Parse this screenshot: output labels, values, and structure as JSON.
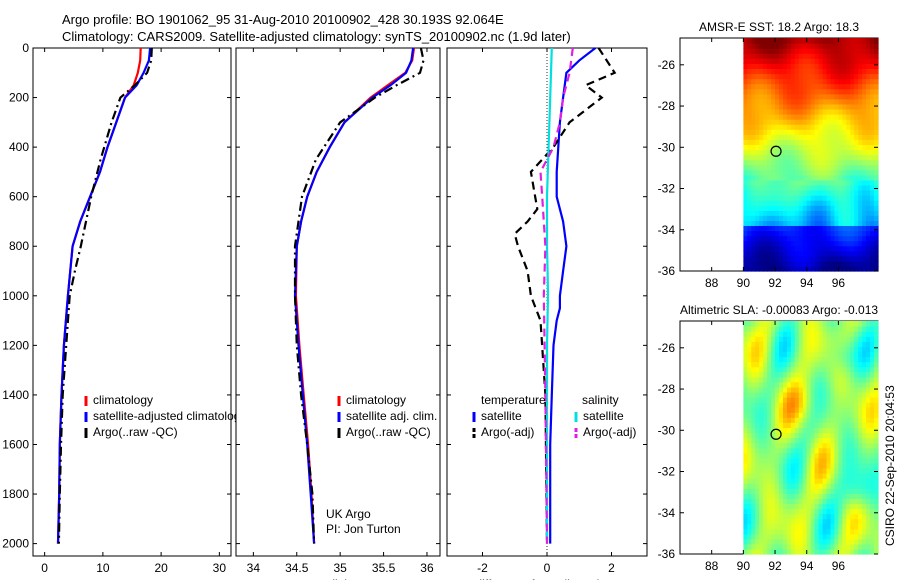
{
  "header": {
    "line1": "Argo profile: BO 1901062_95 31-Aug-2010 20100902_428 30.193S 92.064E",
    "line2": "Climatology: CARS2009. Satellite-adjusted climatology: synTS_20100902.nc (1.9d later)"
  },
  "credit": "CSIRO 22-Sep-2010 20:04:53",
  "colors": {
    "red": "#ff0000",
    "blue": "#0000ff",
    "black": "#000000",
    "cyan": "#00e0e0",
    "magenta": "#e020e0"
  },
  "chart_data": [
    {
      "type": "line",
      "name": "temperature",
      "xlabel": "temperature",
      "xlim": [
        -2,
        32
      ],
      "ylim": [
        2050,
        0
      ],
      "xticks": [
        0,
        10,
        20,
        30
      ],
      "yticks": [
        0,
        200,
        400,
        600,
        800,
        1000,
        1200,
        1400,
        1600,
        1800,
        2000
      ],
      "legend": [
        "climatology",
        "satellite-adjusted climatology",
        "Argo(..raw -QC)"
      ],
      "series": [
        {
          "name": "climatology",
          "color": "red",
          "dash": "solid",
          "x": [
            16.5,
            16.4,
            16.0,
            15.3,
            13.8,
            12.3,
            10.8,
            9.5,
            7.8,
            6.1,
            4.8,
            4.0,
            3.3,
            2.9,
            2.6,
            2.5,
            2.3
          ],
          "y": [
            0,
            50,
            100,
            150,
            200,
            300,
            400,
            500,
            600,
            700,
            800,
            1000,
            1200,
            1400,
            1600,
            1800,
            2000
          ]
        },
        {
          "name": "satellite-adjusted climatology",
          "color": "blue",
          "dash": "solid",
          "x": [
            18.1,
            17.9,
            17.0,
            15.8,
            13.8,
            12.3,
            10.8,
            9.5,
            7.8,
            6.1,
            4.8,
            4.0,
            3.3,
            2.9,
            2.6,
            2.5,
            2.3
          ],
          "y": [
            0,
            50,
            100,
            150,
            200,
            300,
            400,
            500,
            600,
            700,
            800,
            1000,
            1200,
            1400,
            1600,
            1800,
            2000
          ]
        },
        {
          "name": "Argo(..raw -QC)",
          "color": "black",
          "dash": "dashdot",
          "x": [
            18.4,
            18.3,
            17.6,
            15.5,
            13.0,
            11.5,
            9.6,
            8.0,
            6.2,
            5.2,
            4.3,
            3.7,
            3.1,
            2.8,
            2.6,
            2.45
          ],
          "y": [
            0,
            50,
            100,
            150,
            200,
            300,
            450,
            600,
            800,
            900,
            1000,
            1200,
            1400,
            1600,
            1800,
            2000
          ]
        }
      ]
    },
    {
      "type": "line",
      "name": "salinity",
      "xlabel": "salinity",
      "xlim": [
        33.8,
        36.15
      ],
      "ylim": [
        2050,
        0
      ],
      "xticks": [
        34,
        34.5,
        35,
        35.5,
        36
      ],
      "legend": [
        "climatology",
        "satellite adj. clim.",
        "Argo(..raw -QC)"
      ],
      "annotations": [
        "UK Argo",
        "PI: Jon Turton"
      ],
      "series": [
        {
          "name": "climatology",
          "color": "red",
          "dash": "solid",
          "x": [
            35.85,
            35.83,
            35.75,
            35.55,
            35.35,
            35.05,
            34.88,
            34.73,
            34.62,
            34.55,
            34.5,
            34.49,
            34.53,
            34.58,
            34.63,
            34.67,
            34.7
          ],
          "y": [
            0,
            50,
            100,
            150,
            200,
            300,
            400,
            500,
            600,
            700,
            800,
            1000,
            1200,
            1400,
            1600,
            1800,
            2000
          ]
        },
        {
          "name": "satellite adj. clim.",
          "color": "blue",
          "dash": "solid",
          "x": [
            35.84,
            35.82,
            35.76,
            35.58,
            35.37,
            35.05,
            34.88,
            34.73,
            34.62,
            34.55,
            34.5,
            34.48,
            34.52,
            34.57,
            34.62,
            34.66,
            34.7
          ],
          "y": [
            0,
            50,
            100,
            150,
            200,
            300,
            400,
            500,
            600,
            700,
            800,
            1000,
            1200,
            1400,
            1600,
            1800,
            2000
          ]
        },
        {
          "name": "Argo(..raw -QC)",
          "color": "black",
          "dash": "dashdot",
          "x": [
            35.93,
            35.96,
            35.92,
            35.65,
            35.4,
            35.0,
            34.72,
            34.56,
            34.48,
            34.48,
            34.5,
            34.55,
            34.62,
            34.68,
            34.7
          ],
          "y": [
            0,
            50,
            100,
            150,
            200,
            300,
            450,
            600,
            800,
            1000,
            1200,
            1400,
            1600,
            1800,
            2000
          ]
        }
      ]
    },
    {
      "type": "line",
      "name": "difference",
      "xlabel": "difference from climatology",
      "xlim": [
        -3.1,
        3.1
      ],
      "ylim": [
        2050,
        0
      ],
      "xticks": [
        -2,
        0,
        2
      ],
      "legend_groups": [
        {
          "title": "temperature",
          "items": [
            "satellite",
            "Argo(-adj)"
          ]
        },
        {
          "title": "salinity",
          "items": [
            "satellite",
            "Argo(-adj)"
          ]
        }
      ],
      "series": [
        {
          "name": "temperature satellite",
          "color": "blue",
          "dash": "solid",
          "x": [
            1.5,
            1.0,
            0.6,
            0.5,
            0.4,
            0.35,
            0.3,
            0.3,
            0.5,
            0.6,
            0.5,
            0.4,
            0.4,
            0.3,
            0.2,
            0.15,
            0.1,
            0.1,
            0.1
          ],
          "y": [
            0,
            50,
            100,
            200,
            300,
            400,
            500,
            600,
            700,
            800,
            900,
            1000,
            1050,
            1100,
            1200,
            1400,
            1600,
            1800,
            2000
          ]
        },
        {
          "name": "temperature Argo(-adj)",
          "color": "black",
          "dash": "dashed",
          "x": [
            1.6,
            2.1,
            1.2,
            1.7,
            0.7,
            0.2,
            -0.5,
            -0.3,
            -0.6,
            -1.0,
            -0.9,
            -0.6,
            -0.5,
            -0.2,
            -0.05,
            0.0
          ],
          "y": [
            0,
            100,
            150,
            200,
            300,
            400,
            500,
            650,
            700,
            750,
            800,
            900,
            1000,
            1100,
            1400,
            2000
          ]
        },
        {
          "name": "salinity satellite",
          "color": "cyan",
          "dash": "solid",
          "x": [
            0.15,
            0.1,
            0.05,
            0.0,
            0.0,
            0.02,
            0.03,
            0.0,
            0.0,
            0.0,
            0.0,
            0.0
          ],
          "y": [
            0,
            200,
            400,
            600,
            800,
            900,
            1000,
            1200,
            1400,
            1600,
            1800,
            2000
          ]
        },
        {
          "name": "salinity Argo(-adj)",
          "color": "magenta",
          "dash": "dashed",
          "x": [
            0.8,
            0.7,
            0.5,
            0.4,
            0.2,
            -0.2,
            -0.15,
            -0.1,
            -0.05,
            -0.1,
            -0.05,
            0.0
          ],
          "y": [
            0,
            100,
            200,
            300,
            400,
            500,
            600,
            700,
            800,
            1000,
            1400,
            2000
          ]
        }
      ]
    },
    {
      "type": "heatmap",
      "name": "sst",
      "title": "AMSR-E SST: 18.2 Argo: 18.3",
      "xlim": [
        86,
        98.5
      ],
      "ylim": [
        -36,
        -24.7
      ],
      "xticks": [
        88,
        90,
        92,
        94,
        96
      ],
      "yticks": [
        -26,
        -28,
        -30,
        -32,
        -34,
        -36
      ],
      "data_extent": {
        "lon": [
          90,
          98.5
        ],
        "lat": [
          -36,
          -24.7
        ]
      },
      "marker": {
        "lon": 92.064,
        "lat": -30.193
      },
      "summary": "warm (orange/red) to the north near -25, yellow-green mid latitudes, cyan/blue south of -34"
    },
    {
      "type": "heatmap",
      "name": "sla",
      "title": "Altimetric SLA: -0.00083 Argo: -0.013",
      "xlim": [
        86,
        98.5
      ],
      "ylim": [
        -36,
        -24.7
      ],
      "xticks": [
        88,
        90,
        92,
        94,
        96
      ],
      "yticks": [
        -26,
        -28,
        -30,
        -32,
        -34,
        -36
      ],
      "data_extent": {
        "lon": [
          90,
          98.5
        ],
        "lat": [
          -36,
          -24.7
        ]
      },
      "marker": {
        "lon": 92.064,
        "lat": -30.193
      },
      "summary": "mostly green field with yellow/orange highs and cyan lows scattered"
    }
  ]
}
